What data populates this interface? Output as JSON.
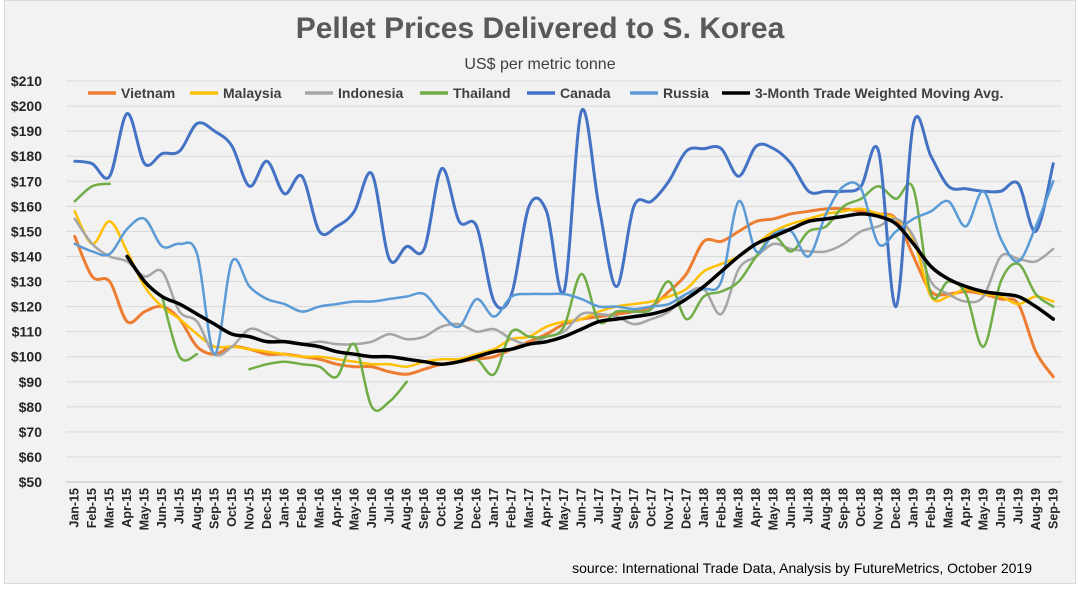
{
  "chart_data": {
    "type": "line",
    "title": "Pellet Prices Delivered to S. Korea",
    "subtitle": "US$ per metric tonne",
    "source": "source: International Trade Data, Analysis by FutureMetrics, October 2019",
    "ylim": [
      50,
      210
    ],
    "yticks": [
      "$50",
      "$60",
      "$70",
      "$80",
      "$90",
      "$100",
      "$110",
      "$120",
      "$130",
      "$140",
      "$150",
      "$160",
      "$170",
      "$180",
      "$190",
      "$200",
      "$210"
    ],
    "grid": true,
    "legend_position": "top",
    "x": [
      "Jan-15",
      "Feb-15",
      "Mar-15",
      "Apr-15",
      "May-15",
      "Jun-15",
      "Jul-15",
      "Aug-15",
      "Sep-15",
      "Oct-15",
      "Nov-15",
      "Dec-15",
      "Jan-16",
      "Feb-16",
      "Mar-16",
      "Apr-16",
      "May-16",
      "Jun-16",
      "Jul-16",
      "Aug-16",
      "Sep-16",
      "Oct-16",
      "Nov-16",
      "Dec-16",
      "Jan-17",
      "Feb-17",
      "Mar-17",
      "Apr-17",
      "May-17",
      "Jun-17",
      "Jul-17",
      "Aug-17",
      "Sep-17",
      "Oct-17",
      "Nov-17",
      "Dec-17",
      "Jan-18",
      "Feb-18",
      "Mar-18",
      "Apr-18",
      "May-18",
      "Jun-18",
      "Jul-18",
      "Aug-18",
      "Sep-18",
      "Oct-18",
      "Nov-18",
      "Dec-18",
      "Jan-19",
      "Feb-19",
      "Mar-19",
      "Apr-19",
      "May-19",
      "Jun-19",
      "Jul-19",
      "Aug-19",
      "Sep-19"
    ],
    "series": [
      {
        "name": "Vietnam",
        "color": "#ed7d31",
        "width": 3,
        "values": [
          148,
          132,
          130,
          114,
          118,
          120,
          115,
          104,
          101,
          104,
          103,
          101,
          101,
          100,
          99,
          97,
          96,
          96,
          94,
          93,
          95,
          97,
          98,
          99,
          100,
          103,
          106,
          109,
          113,
          115,
          116,
          117,
          118,
          120,
          126,
          133,
          146,
          146,
          150,
          154,
          155,
          157,
          158,
          159,
          159,
          158,
          157,
          155,
          140,
          126,
          125,
          126,
          125,
          123,
          121,
          102,
          92
        ]
      },
      {
        "name": "Malaysia",
        "color": "#ffc000",
        "width": 2.5,
        "values": [
          158,
          145,
          154,
          142,
          128,
          120,
          115,
          109,
          104,
          104,
          103,
          102,
          101,
          100,
          100,
          99,
          98,
          97,
          97,
          96,
          98,
          99,
          99,
          101,
          103,
          107,
          108,
          112,
          114,
          115,
          118,
          120,
          121,
          122,
          124,
          127,
          134,
          137,
          140,
          145,
          150,
          153,
          155,
          157,
          158,
          159,
          157,
          155,
          147,
          124,
          124,
          127,
          125,
          124,
          121,
          124,
          122
        ]
      },
      {
        "name": "Indonesia",
        "color": "#a5a5a5",
        "width": 2.5,
        "values": [
          155,
          145,
          140,
          138,
          132,
          134,
          118,
          114,
          101,
          104,
          111,
          109,
          106,
          105,
          106,
          105,
          105,
          106,
          109,
          107,
          108,
          112,
          113,
          110,
          111,
          107,
          105,
          108,
          110,
          117,
          117,
          116,
          113,
          115,
          118,
          125,
          127,
          117,
          135,
          140,
          145,
          143,
          142,
          142,
          145,
          150,
          152,
          155,
          148,
          130,
          125,
          122,
          124,
          140,
          139,
          138,
          143
        ]
      },
      {
        "name": "Thailand",
        "color": "#70ad47",
        "width": 2.5,
        "values": [
          162,
          168,
          169,
          null,
          null,
          124,
          100,
          101,
          null,
          null,
          95,
          97,
          98,
          97,
          96,
          92,
          105,
          80,
          82,
          90,
          null,
          null,
          98,
          99,
          93,
          110,
          108,
          108,
          112,
          133,
          114,
          118,
          118,
          119,
          130,
          115,
          124,
          126,
          130,
          140,
          148,
          142,
          150,
          152,
          160,
          163,
          168,
          163,
          167,
          125,
          130,
          125,
          104,
          130,
          137,
          125,
          120
        ]
      },
      {
        "name": "Canada",
        "color": "#4472c4",
        "width": 3,
        "values": [
          178,
          177,
          172,
          197,
          177,
          181,
          182,
          193,
          190,
          184,
          168,
          178,
          165,
          172,
          150,
          152,
          158,
          173,
          139,
          144,
          143,
          175,
          154,
          152,
          122,
          125,
          160,
          158,
          126,
          198,
          160,
          128,
          160,
          162,
          170,
          182,
          183,
          183,
          172,
          184,
          183,
          177,
          166,
          166,
          166,
          168,
          182,
          120,
          193,
          180,
          168,
          167,
          166,
          166,
          169,
          150,
          177
        ]
      },
      {
        "name": "Russia",
        "color": "#5b9bd5",
        "width": 2.5,
        "values": [
          145,
          142,
          141,
          151,
          155,
          144,
          145,
          141,
          101,
          138,
          128,
          123,
          121,
          118,
          120,
          121,
          122,
          122,
          123,
          124,
          125,
          117,
          112,
          123,
          116,
          124,
          125,
          125,
          125,
          123,
          120,
          120,
          119,
          120,
          121,
          125,
          127,
          130,
          162,
          142,
          149,
          150,
          140,
          157,
          168,
          167,
          145,
          150,
          155,
          158,
          162,
          152,
          166,
          147,
          138,
          152,
          170
        ]
      },
      {
        "name": "3-Month Trade Weighted Moving Avg.",
        "color": "#000000",
        "width": 3.5,
        "values": [
          null,
          null,
          null,
          140,
          130,
          124,
          121,
          117,
          113,
          109,
          108,
          106,
          106,
          105,
          104,
          102,
          101,
          100,
          100,
          99,
          98,
          97,
          98,
          100,
          102,
          103,
          105,
          106,
          108,
          111,
          114,
          115,
          116,
          117,
          119,
          123,
          128,
          134,
          140,
          145,
          148,
          151,
          154,
          155,
          156,
          157,
          156,
          153,
          145,
          136,
          131,
          128,
          126,
          125,
          124,
          120,
          115
        ]
      }
    ]
  }
}
